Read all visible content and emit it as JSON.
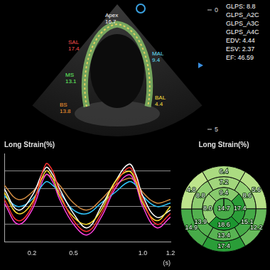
{
  "image": {
    "segment_labels": [
      {
        "label": "SAL",
        "value": 17.4,
        "color": "#ff5050"
      },
      {
        "label": "Apex",
        "value": 16.7,
        "color": "#ffffff"
      },
      {
        "label": "MS",
        "value": 13.1,
        "color": "#66ff66"
      },
      {
        "label": "BS",
        "value": 13.8,
        "color": "#ff9a30"
      },
      {
        "label": "MAL",
        "value": 9.4,
        "color": "#66e0ff"
      },
      {
        "label": "BAL",
        "value": 4.4,
        "color": "#ffe040"
      }
    ],
    "depth_ticks": [
      0,
      5
    ],
    "measurements": [
      "GLPS: 8.8",
      "GLPS_A2C",
      "GLPS_A3C",
      "GLPS_A4C",
      "EDV: 4.44",
      "ESV: 2.37",
      "EF: 46.59"
    ]
  },
  "chart_data": [
    {
      "type": "line",
      "title": "Long Strain(%)",
      "x_label": "(s)",
      "x": [
        0,
        0.1,
        0.2,
        0.3,
        0.35,
        0.4,
        0.5,
        0.6,
        0.7,
        0.8,
        0.9,
        0.95,
        1.0,
        1.1,
        1.2
      ],
      "series": [
        {
          "color": "#ff3030",
          "values": [
            -8,
            -14,
            -10,
            2,
            0,
            -6,
            -14,
            -17,
            -12,
            -4,
            1,
            -2,
            -8,
            -15,
            -12
          ]
        },
        {
          "color": "#ffe030",
          "values": [
            -6,
            -12,
            -9,
            0,
            -2,
            -7,
            -13,
            -15,
            -11,
            -3,
            0,
            -3,
            -9,
            -14,
            -10
          ]
        },
        {
          "color": "#ffffff",
          "values": [
            -5,
            -11,
            -7,
            1,
            -1,
            -5,
            -12,
            -16,
            -10,
            -3,
            2,
            -1,
            -7,
            -13,
            -11
          ]
        },
        {
          "color": "#30c8ff",
          "values": [
            -7,
            -10,
            -8,
            -3,
            -4,
            -6,
            -11,
            -12,
            -9,
            -6,
            -3,
            -4,
            -7,
            -10,
            -9
          ]
        },
        {
          "color": "#ff40e0",
          "values": [
            -9,
            -15,
            -11,
            -1,
            -3,
            -8,
            -15,
            -18,
            -13,
            -5,
            -1,
            -4,
            -10,
            -16,
            -13
          ]
        },
        {
          "color": "#d08a40",
          "values": [
            -4,
            -8,
            -6,
            -1,
            -2,
            -4,
            -9,
            -11,
            -8,
            -4,
            -2,
            -3,
            -6,
            -9,
            -8
          ]
        }
      ],
      "xlim": [
        0,
        1.2
      ],
      "xticks": [
        0.2,
        0.5,
        {
          "value": 1,
          "label": "1.0"
        },
        1.2
      ],
      "ylim": [
        -20,
        5
      ],
      "yticks": [
        -15,
        -10,
        -5,
        0
      ],
      "grid": true,
      "tick_labels": "x"
    },
    {
      "type": "bullseye",
      "title": "Long Strain(%)",
      "rings": [
        {
          "values": [
            6.4,
            5.6,
            12.2,
            17.4,
            14.9,
            4.8
          ],
          "value_labels": [
            "6.4",
            "5.6",
            "12.2",
            "17.4",
            "14.9",
            "4.8"
          ]
        },
        {
          "values": [
            7.2,
            8.6,
            15.1,
            13.4,
            13.9,
            8.8
          ],
          "value_labels": [
            "7.2",
            "8.6",
            "15.1",
            "13.4",
            "13.9",
            "8.8"
          ]
        },
        {
          "values": [
            9.4,
            17.4,
            18.6,
            8.0
          ],
          "value_labels": [
            "9.4",
            "17.4",
            "18.6",
            "8.0"
          ]
        },
        {
          "values": [
            14.7
          ],
          "value_labels": [
            "14.7"
          ]
        }
      ],
      "data_labels": true
    }
  ]
}
